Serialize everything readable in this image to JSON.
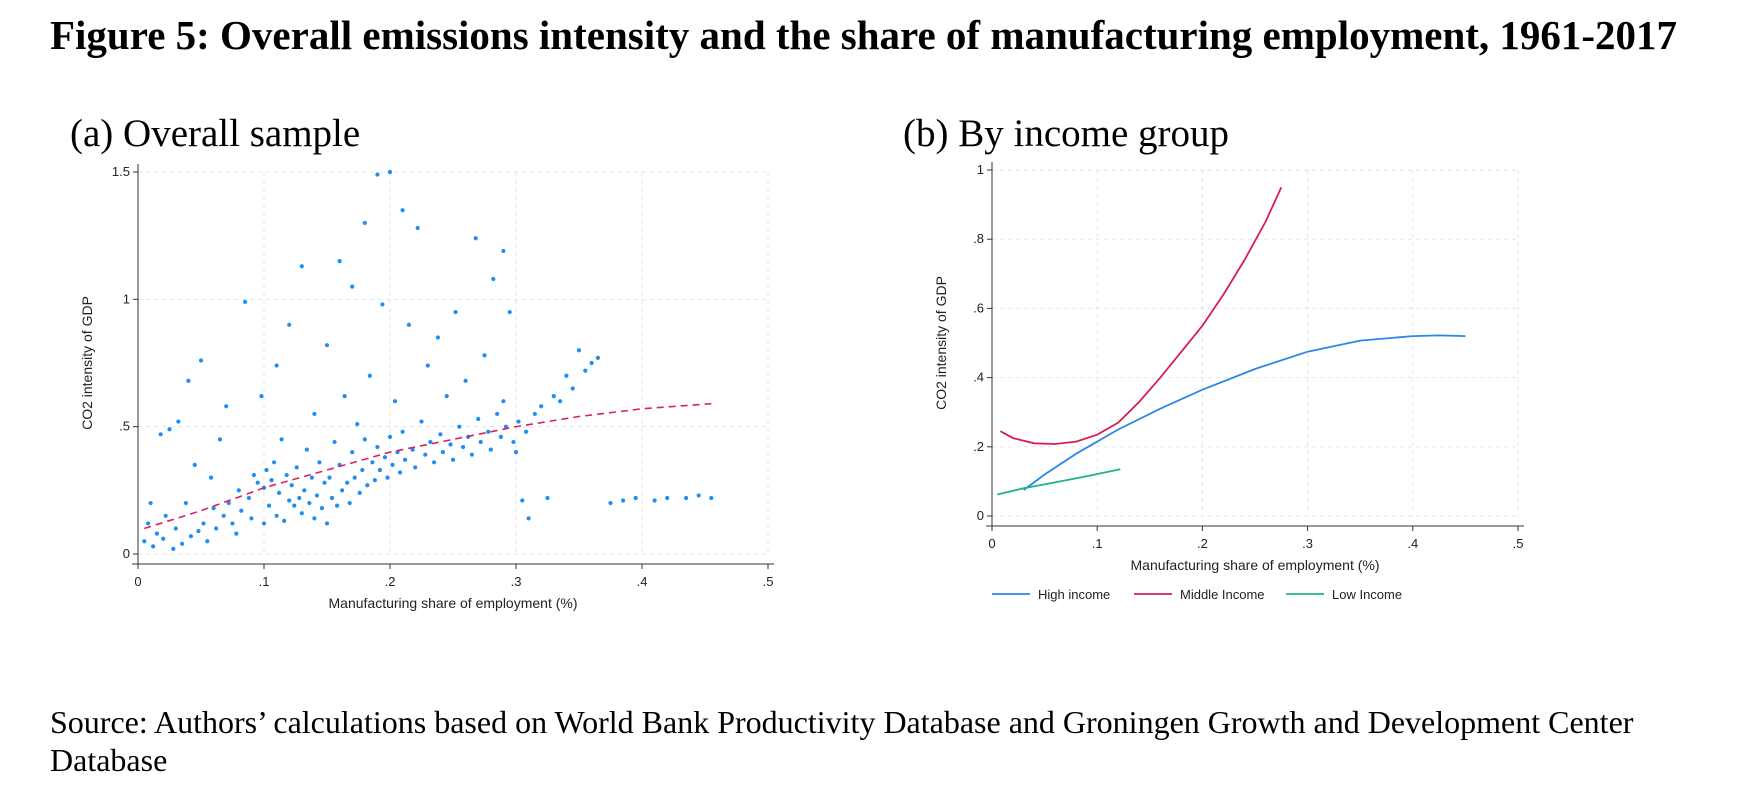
{
  "figure": {
    "title": "Figure 5: Overall emissions intensity and the share of manufacturing employment, 1961-2017",
    "source": "Source: Authors’ calculations based on World Bank Productivity Database and Groningen Growth and Development Center Database"
  },
  "chart_data": [
    {
      "panel_label": "(a) Overall sample",
      "type": "scatter",
      "xlabel": "Manufacturing share of employment (%)",
      "ylabel": "CO2 intensity of GDP",
      "xlim": [
        0,
        0.5
      ],
      "ylim": [
        0,
        1.5
      ],
      "xticks": [
        {
          "v": 0,
          "label": "0"
        },
        {
          "v": 0.1,
          "label": ".1"
        },
        {
          "v": 0.2,
          "label": ".2"
        },
        {
          "v": 0.3,
          "label": ".3"
        },
        {
          "v": 0.4,
          "label": ".4"
        },
        {
          "v": 0.5,
          "label": ".5"
        }
      ],
      "yticks": [
        {
          "v": 0,
          "label": "0"
        },
        {
          "v": 0.5,
          "label": ".5"
        },
        {
          "v": 1,
          "label": "1"
        },
        {
          "v": 1.5,
          "label": "1.5"
        }
      ],
      "grid": true,
      "marker_color": "#1f8ef1",
      "points": [
        [
          0.005,
          0.05
        ],
        [
          0.008,
          0.12
        ],
        [
          0.01,
          0.2
        ],
        [
          0.012,
          0.03
        ],
        [
          0.015,
          0.08
        ],
        [
          0.018,
          0.47
        ],
        [
          0.02,
          0.06
        ],
        [
          0.022,
          0.15
        ],
        [
          0.025,
          0.49
        ],
        [
          0.028,
          0.02
        ],
        [
          0.03,
          0.1
        ],
        [
          0.032,
          0.52
        ],
        [
          0.035,
          0.04
        ],
        [
          0.038,
          0.2
        ],
        [
          0.04,
          0.68
        ],
        [
          0.042,
          0.07
        ],
        [
          0.045,
          0.35
        ],
        [
          0.048,
          0.09
        ],
        [
          0.05,
          0.76
        ],
        [
          0.052,
          0.12
        ],
        [
          0.055,
          0.05
        ],
        [
          0.058,
          0.3
        ],
        [
          0.06,
          0.18
        ],
        [
          0.062,
          0.1
        ],
        [
          0.065,
          0.45
        ],
        [
          0.068,
          0.15
        ],
        [
          0.07,
          0.58
        ],
        [
          0.072,
          0.2
        ],
        [
          0.075,
          0.12
        ],
        [
          0.078,
          0.08
        ],
        [
          0.08,
          0.25
        ],
        [
          0.082,
          0.17
        ],
        [
          0.085,
          0.99
        ],
        [
          0.088,
          0.22
        ],
        [
          0.09,
          0.14
        ],
        [
          0.092,
          0.31
        ],
        [
          0.095,
          0.28
        ],
        [
          0.098,
          0.62
        ],
        [
          0.1,
          0.12
        ],
        [
          0.1,
          0.26
        ],
        [
          0.102,
          0.33
        ],
        [
          0.104,
          0.19
        ],
        [
          0.106,
          0.29
        ],
        [
          0.108,
          0.36
        ],
        [
          0.11,
          0.15
        ],
        [
          0.11,
          0.74
        ],
        [
          0.112,
          0.24
        ],
        [
          0.114,
          0.45
        ],
        [
          0.116,
          0.13
        ],
        [
          0.118,
          0.31
        ],
        [
          0.12,
          0.9
        ],
        [
          0.12,
          0.21
        ],
        [
          0.122,
          0.27
        ],
        [
          0.124,
          0.19
        ],
        [
          0.126,
          0.34
        ],
        [
          0.128,
          0.22
        ],
        [
          0.13,
          1.13
        ],
        [
          0.13,
          0.16
        ],
        [
          0.132,
          0.25
        ],
        [
          0.134,
          0.41
        ],
        [
          0.136,
          0.2
        ],
        [
          0.138,
          0.3
        ],
        [
          0.14,
          0.14
        ],
        [
          0.14,
          0.55
        ],
        [
          0.142,
          0.23
        ],
        [
          0.144,
          0.36
        ],
        [
          0.146,
          0.18
        ],
        [
          0.148,
          0.28
        ],
        [
          0.15,
          0.82
        ],
        [
          0.15,
          0.12
        ],
        [
          0.152,
          0.3
        ],
        [
          0.154,
          0.22
        ],
        [
          0.156,
          0.44
        ],
        [
          0.158,
          0.19
        ],
        [
          0.16,
          1.15
        ],
        [
          0.16,
          0.35
        ],
        [
          0.162,
          0.25
        ],
        [
          0.164,
          0.62
        ],
        [
          0.166,
          0.28
        ],
        [
          0.168,
          0.2
        ],
        [
          0.17,
          1.05
        ],
        [
          0.17,
          0.4
        ],
        [
          0.172,
          0.3
        ],
        [
          0.174,
          0.51
        ],
        [
          0.176,
          0.24
        ],
        [
          0.178,
          0.33
        ],
        [
          0.18,
          1.3
        ],
        [
          0.18,
          0.45
        ],
        [
          0.182,
          0.27
        ],
        [
          0.184,
          0.7
        ],
        [
          0.186,
          0.36
        ],
        [
          0.188,
          0.29
        ],
        [
          0.19,
          1.49
        ],
        [
          0.19,
          0.42
        ],
        [
          0.192,
          0.33
        ],
        [
          0.194,
          0.98
        ],
        [
          0.196,
          0.38
        ],
        [
          0.198,
          0.3
        ],
        [
          0.2,
          1.5
        ],
        [
          0.2,
          0.46
        ],
        [
          0.202,
          0.35
        ],
        [
          0.204,
          0.6
        ],
        [
          0.206,
          0.4
        ],
        [
          0.208,
          0.32
        ],
        [
          0.21,
          1.35
        ],
        [
          0.21,
          0.48
        ],
        [
          0.212,
          0.37
        ],
        [
          0.215,
          0.9
        ],
        [
          0.218,
          0.41
        ],
        [
          0.22,
          0.34
        ],
        [
          0.222,
          1.28
        ],
        [
          0.225,
          0.52
        ],
        [
          0.228,
          0.39
        ],
        [
          0.23,
          0.74
        ],
        [
          0.232,
          0.44
        ],
        [
          0.235,
          0.36
        ],
        [
          0.238,
          0.85
        ],
        [
          0.24,
          0.47
        ],
        [
          0.242,
          0.4
        ],
        [
          0.245,
          0.62
        ],
        [
          0.248,
          0.43
        ],
        [
          0.25,
          0.37
        ],
        [
          0.252,
          0.95
        ],
        [
          0.255,
          0.5
        ],
        [
          0.258,
          0.42
        ],
        [
          0.26,
          0.68
        ],
        [
          0.262,
          0.46
        ],
        [
          0.265,
          0.39
        ],
        [
          0.268,
          1.24
        ],
        [
          0.27,
          0.53
        ],
        [
          0.272,
          0.44
        ],
        [
          0.275,
          0.78
        ],
        [
          0.278,
          0.48
        ],
        [
          0.28,
          0.41
        ],
        [
          0.282,
          1.08
        ],
        [
          0.285,
          0.55
        ],
        [
          0.288,
          0.46
        ],
        [
          0.29,
          1.19
        ],
        [
          0.29,
          0.6
        ],
        [
          0.292,
          0.5
        ],
        [
          0.295,
          0.95
        ],
        [
          0.298,
          0.44
        ],
        [
          0.3,
          0.4
        ],
        [
          0.302,
          0.52
        ],
        [
          0.305,
          0.21
        ],
        [
          0.308,
          0.48
        ],
        [
          0.31,
          0.14
        ],
        [
          0.315,
          0.55
        ],
        [
          0.32,
          0.58
        ],
        [
          0.325,
          0.22
        ],
        [
          0.33,
          0.62
        ],
        [
          0.335,
          0.6
        ],
        [
          0.34,
          0.7
        ],
        [
          0.345,
          0.65
        ],
        [
          0.35,
          0.8
        ],
        [
          0.355,
          0.72
        ],
        [
          0.36,
          0.75
        ],
        [
          0.365,
          0.77
        ],
        [
          0.375,
          0.2
        ],
        [
          0.385,
          0.21
        ],
        [
          0.395,
          0.22
        ],
        [
          0.41,
          0.21
        ],
        [
          0.42,
          0.22
        ],
        [
          0.435,
          0.22
        ],
        [
          0.445,
          0.23
        ],
        [
          0.455,
          0.22
        ]
      ],
      "fit_line": {
        "color": "#d8245e",
        "style": "dashed",
        "points": [
          [
            0.005,
            0.1
          ],
          [
            0.05,
            0.17
          ],
          [
            0.1,
            0.26
          ],
          [
            0.15,
            0.33
          ],
          [
            0.2,
            0.4
          ],
          [
            0.25,
            0.45
          ],
          [
            0.3,
            0.5
          ],
          [
            0.35,
            0.54
          ],
          [
            0.4,
            0.57
          ],
          [
            0.455,
            0.59
          ]
        ]
      }
    },
    {
      "panel_label": "(b) By income group",
      "type": "line",
      "xlabel": "Manufacturing share of employment (%)",
      "ylabel": "CO2 intensity of GDP",
      "xlim": [
        0,
        0.5
      ],
      "ylim": [
        0,
        1
      ],
      "xticks": [
        {
          "v": 0,
          "label": "0"
        },
        {
          "v": 0.1,
          "label": ".1"
        },
        {
          "v": 0.2,
          "label": ".2"
        },
        {
          "v": 0.3,
          "label": ".3"
        },
        {
          "v": 0.4,
          "label": ".4"
        },
        {
          "v": 0.5,
          "label": ".5"
        }
      ],
      "yticks": [
        {
          "v": 0,
          "label": "0"
        },
        {
          "v": 0.2,
          "label": ".2"
        },
        {
          "v": 0.4,
          "label": ".4"
        },
        {
          "v": 0.6,
          "label": ".6"
        },
        {
          "v": 0.8,
          "label": ".8"
        },
        {
          "v": 1,
          "label": "1"
        }
      ],
      "grid": true,
      "legend_position": "bottom",
      "series": [
        {
          "name": "High income",
          "color": "#2a87e8",
          "x": [
            0.03,
            0.05,
            0.08,
            0.12,
            0.16,
            0.2,
            0.25,
            0.3,
            0.35,
            0.4,
            0.425,
            0.45
          ],
          "y": [
            0.075,
            0.12,
            0.18,
            0.25,
            0.31,
            0.365,
            0.425,
            0.475,
            0.507,
            0.52,
            0.522,
            0.52
          ]
        },
        {
          "name": "Middle Income",
          "color": "#d41f56",
          "x": [
            0.008,
            0.02,
            0.04,
            0.06,
            0.08,
            0.1,
            0.12,
            0.14,
            0.16,
            0.18,
            0.2,
            0.22,
            0.24,
            0.26,
            0.275
          ],
          "y": [
            0.245,
            0.225,
            0.21,
            0.208,
            0.215,
            0.235,
            0.27,
            0.33,
            0.4,
            0.475,
            0.55,
            0.64,
            0.74,
            0.85,
            0.95
          ]
        },
        {
          "name": "Low Income",
          "color": "#1fb482",
          "x": [
            0.005,
            0.03,
            0.06,
            0.09,
            0.122
          ],
          "y": [
            0.062,
            0.08,
            0.097,
            0.115,
            0.135
          ]
        }
      ]
    }
  ]
}
